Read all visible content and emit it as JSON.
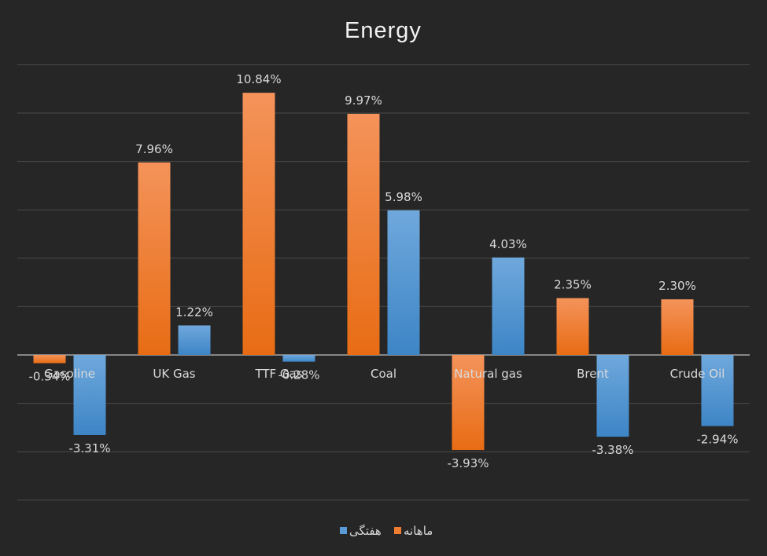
{
  "chart_data": {
    "type": "bar",
    "title": "Energy",
    "categories": [
      "Gasoline",
      "UK Gas",
      "TTF Gas",
      "Coal",
      "Natural gas",
      "Brent",
      "Crude Oil"
    ],
    "series": [
      {
        "name": "ماهانه",
        "color": "#ed7d31",
        "values": [
          -0.34,
          7.96,
          10.84,
          9.97,
          -3.93,
          2.35,
          2.3
        ],
        "labels": [
          "-0.34%",
          "7.96%",
          "10.84%",
          "9.97%",
          "-3.93%",
          "2.35%",
          "2.30%"
        ]
      },
      {
        "name": "هفتگی",
        "color": "#5b9bd5",
        "values": [
          -3.31,
          1.22,
          -0.28,
          5.98,
          4.03,
          -3.38,
          -2.94
        ],
        "labels": [
          "-3.31%",
          "1.22%",
          "-0.28%",
          "5.98%",
          "4.03%",
          "-3.38%",
          "-2.94%"
        ]
      }
    ],
    "ylim": [
      -6,
      12
    ],
    "grid": true,
    "legend_position": "bottom"
  }
}
